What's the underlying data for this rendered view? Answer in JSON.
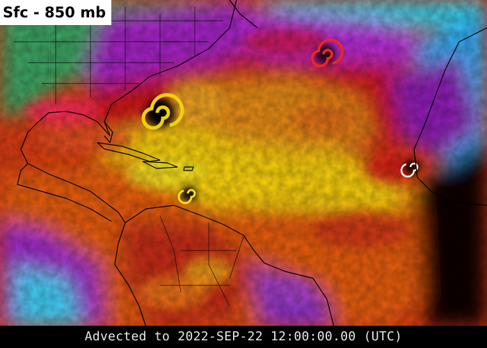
{
  "header": {
    "layer_label": "Sfc - 850 mb"
  },
  "footer": {
    "timestamp_text": "Advected to 2022-SEP-22 12:00:00.00 (UTC)"
  },
  "colors": {
    "background": "#000000",
    "very_dry_black": "#0a0005",
    "dry_magenta": "#8a1fb0",
    "dry_violet": "#b02ad0",
    "moist_cyan": "#2fd0f0",
    "moist_green": "#3aa060",
    "red": "#c81818",
    "orange": "#e05a10",
    "orange_light": "#f08a18",
    "yellow": "#f0d010",
    "coastline": "#000000"
  },
  "map_features": [
    "continental-coastlines",
    "us-state-borders",
    "country-borders",
    "cyclone-vortices"
  ]
}
